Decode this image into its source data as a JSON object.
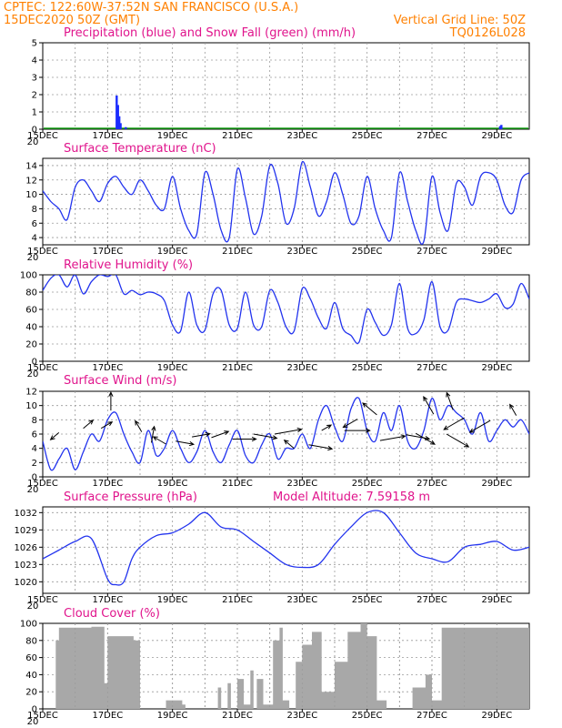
{
  "header": {
    "line1": "CPTEC:   122:60W-37:52N  SAN FRANCISCO (U.S.A.)",
    "line2": "15DEC2020  50Z (GMT)",
    "grid_note": "Vertical Grid Line: 50Z",
    "code": "TQ0126L028"
  },
  "colors": {
    "header": "#ff8000",
    "title": "#e0148c",
    "line": "#2233ee",
    "precip": "#1a2cff",
    "snow": "#16a016",
    "cloud": "#a8a8a8",
    "wind": "#000000"
  },
  "x_axis": {
    "date_labels": [
      "15DEC",
      "17DEC",
      "19DEC",
      "21DEC",
      "23DEC",
      "25DEC",
      "27DEC",
      "29DEC"
    ],
    "date_positions": [
      0,
      2,
      4,
      6,
      8,
      10,
      12,
      14
    ],
    "range": [
      0,
      15
    ],
    "stub": "20"
  },
  "chart_data": [
    {
      "type": "bar",
      "title": "Precipitation (blue) and Snow Fall (green) (mm/h)",
      "ylim": [
        0,
        5
      ],
      "yticks": [
        "0",
        "1",
        "2",
        "3",
        "4",
        "5"
      ],
      "series": [
        {
          "name": "Precipitation",
          "color": "#1a2cff",
          "points": [
            [
              2.28,
              1.95
            ],
            [
              2.32,
              1.4
            ],
            [
              2.36,
              0.75
            ],
            [
              2.4,
              0.35
            ],
            [
              2.56,
              0.12
            ],
            [
              14.1,
              0.18
            ],
            [
              14.14,
              0.25
            ]
          ]
        },
        {
          "name": "Snow Fall",
          "color": "#16a016",
          "values_all_zero": true
        }
      ]
    },
    {
      "type": "line",
      "title": "Surface Temperature (nC)",
      "ylim": [
        3,
        15
      ],
      "yticks": [
        "4",
        "6",
        "8",
        "10",
        "12",
        "14"
      ],
      "x": [
        0,
        0.25,
        0.5,
        0.75,
        1.0,
        1.25,
        1.5,
        1.75,
        2.0,
        2.25,
        2.5,
        2.75,
        3.0,
        3.25,
        3.5,
        3.75,
        4.0,
        4.25,
        4.5,
        4.75,
        5.0,
        5.25,
        5.5,
        5.75,
        6.0,
        6.25,
        6.5,
        6.75,
        7.0,
        7.25,
        7.5,
        7.75,
        8.0,
        8.25,
        8.5,
        8.75,
        9.0,
        9.25,
        9.5,
        9.75,
        10.0,
        10.25,
        10.5,
        10.75,
        11.0,
        11.25,
        11.5,
        11.75,
        12.0,
        12.25,
        12.5,
        12.75,
        13.0,
        13.25,
        13.5,
        13.75,
        14.0,
        14.25,
        14.5,
        14.75,
        15.0
      ],
      "y": [
        10.5,
        9,
        8,
        6.5,
        11,
        12,
        10.5,
        9,
        11.5,
        12.5,
        11,
        10,
        12,
        10.5,
        8.5,
        8,
        12.5,
        8,
        5,
        4.5,
        13,
        10,
        5,
        4,
        13.5,
        9.5,
        4.5,
        7,
        14,
        11.5,
        6,
        8,
        14.5,
        11,
        7,
        9,
        13,
        10,
        6,
        7,
        12.5,
        8,
        5,
        4,
        13,
        9,
        5,
        3.5,
        12.5,
        7.5,
        5,
        11.5,
        11,
        8.5,
        12.5,
        13,
        12,
        8.5,
        7.5,
        12,
        13
      ]
    },
    {
      "type": "line",
      "title": "Relative Humidity (%)",
      "ylim": [
        0,
        100
      ],
      "yticks": [
        "0",
        "20",
        "40",
        "60",
        "80",
        "100"
      ],
      "x": [
        0,
        0.25,
        0.5,
        0.75,
        1.0,
        1.25,
        1.5,
        1.75,
        2.0,
        2.25,
        2.5,
        2.75,
        3.0,
        3.25,
        3.5,
        3.75,
        4.0,
        4.25,
        4.5,
        4.75,
        5.0,
        5.25,
        5.5,
        5.75,
        6.0,
        6.25,
        6.5,
        6.75,
        7.0,
        7.25,
        7.5,
        7.75,
        8.0,
        8.25,
        8.5,
        8.75,
        9.0,
        9.25,
        9.5,
        9.75,
        10.0,
        10.25,
        10.5,
        10.75,
        11.0,
        11.25,
        11.5,
        11.75,
        12.0,
        12.25,
        12.5,
        12.75,
        13.0,
        13.25,
        13.5,
        13.75,
        14.0,
        14.25,
        14.5,
        14.75,
        15.0
      ],
      "y": [
        82,
        96,
        100,
        86,
        100,
        78,
        92,
        100,
        98,
        100,
        78,
        82,
        77,
        80,
        78,
        70,
        42,
        35,
        80,
        42,
        36,
        78,
        82,
        42,
        38,
        80,
        42,
        40,
        82,
        68,
        40,
        35,
        84,
        72,
        50,
        38,
        68,
        38,
        30,
        22,
        60,
        45,
        30,
        42,
        90,
        38,
        32,
        48,
        92,
        40,
        36,
        68,
        72,
        70,
        68,
        72,
        78,
        62,
        66,
        90,
        72
      ]
    },
    {
      "type": "line",
      "title": "Surface Wind (m/s)",
      "ylim": [
        0,
        12
      ],
      "yticks": [
        "0",
        "2",
        "4",
        "6",
        "8",
        "10",
        "12"
      ],
      "x": [
        0,
        0.25,
        0.5,
        0.75,
        1.0,
        1.25,
        1.5,
        1.75,
        2.0,
        2.25,
        2.5,
        2.75,
        3.0,
        3.25,
        3.5,
        3.75,
        4.0,
        4.25,
        4.5,
        4.75,
        5.0,
        5.25,
        5.5,
        5.75,
        6.0,
        6.25,
        6.5,
        6.75,
        7.0,
        7.25,
        7.5,
        7.75,
        8.0,
        8.25,
        8.5,
        8.75,
        9.0,
        9.25,
        9.5,
        9.75,
        10.0,
        10.25,
        10.5,
        10.75,
        11.0,
        11.25,
        11.5,
        11.75,
        12.0,
        12.25,
        12.5,
        12.75,
        13.0,
        13.25,
        13.5,
        13.75,
        14.0,
        14.25,
        14.5,
        14.75,
        15.0
      ],
      "y": [
        5,
        1,
        2.5,
        4,
        1,
        3.5,
        6,
        5,
        8,
        9,
        6,
        3.5,
        2,
        6.5,
        3,
        4,
        6.5,
        4,
        2,
        3.5,
        6.5,
        3.5,
        2,
        4.5,
        6.5,
        3,
        2,
        4.5,
        6,
        2.5,
        4,
        4,
        6,
        4,
        8,
        10,
        7,
        5,
        9.5,
        11,
        6.5,
        5,
        9,
        6.5,
        10,
        5,
        4,
        6.5,
        11,
        8,
        10,
        9,
        8,
        6,
        9,
        5,
        6.5,
        8,
        7,
        8,
        6
      ],
      "arrows": [
        [
          0.5,
          6.2,
          12,
          220
        ],
        [
          1.25,
          6.8,
          14,
          40
        ],
        [
          1.8,
          6.8,
          14,
          30
        ],
        [
          2.1,
          9.3,
          20,
          90
        ],
        [
          3.05,
          6.3,
          14,
          120
        ],
        [
          3.35,
          4.8,
          18,
          80
        ],
        [
          3.8,
          4.6,
          16,
          150
        ],
        [
          4.1,
          5.0,
          20,
          350
        ],
        [
          4.6,
          5.6,
          20,
          10
        ],
        [
          5.2,
          5.5,
          20,
          20
        ],
        [
          5.85,
          5.3,
          26,
          0
        ],
        [
          6.5,
          6.0,
          26,
          350
        ],
        [
          7.15,
          6.0,
          30,
          10
        ],
        [
          7.75,
          4.0,
          14,
          140
        ],
        [
          8.2,
          4.5,
          26,
          350
        ],
        [
          8.6,
          6.5,
          12,
          30
        ],
        [
          9.3,
          6.5,
          28,
          0
        ],
        [
          9.7,
          8.1,
          18,
          210
        ],
        [
          10.3,
          8.7,
          20,
          140
        ],
        [
          10.4,
          5.1,
          28,
          10
        ],
        [
          11.2,
          5.9,
          26,
          350
        ],
        [
          11.5,
          6.1,
          24,
          330
        ],
        [
          12.05,
          8.8,
          22,
          120
        ],
        [
          12.45,
          6.0,
          28,
          330
        ],
        [
          12.65,
          9.4,
          20,
          110
        ],
        [
          13.0,
          8.3,
          26,
          210
        ],
        [
          13.8,
          7.9,
          26,
          210
        ],
        [
          14.6,
          8.6,
          14,
          120
        ]
      ]
    },
    {
      "type": "line",
      "title": "Surface Pressure (hPa)",
      "annotation": "Model Altitude: 7.59158 m",
      "ylim": [
        1018,
        1033
      ],
      "yticks": [
        "1020",
        "1023",
        "1026",
        "1029",
        "1032"
      ],
      "x": [
        0,
        0.5,
        1.0,
        1.5,
        2.0,
        2.25,
        2.5,
        2.75,
        3.0,
        3.5,
        4.0,
        4.5,
        5.0,
        5.5,
        6.0,
        6.5,
        7.0,
        7.5,
        8.0,
        8.5,
        9.0,
        9.5,
        10.0,
        10.5,
        11.0,
        11.5,
        12.0,
        12.5,
        13.0,
        13.5,
        14.0,
        14.5,
        15.0
      ],
      "y": [
        1024,
        1025.5,
        1027,
        1027.5,
        1020.5,
        1019.5,
        1020,
        1024,
        1026,
        1028,
        1028.5,
        1030,
        1032,
        1029.5,
        1029,
        1027,
        1025,
        1023,
        1022.5,
        1023,
        1026.5,
        1029.5,
        1032,
        1032,
        1028.5,
        1025,
        1024,
        1023.5,
        1026,
        1026.5,
        1027,
        1025.5,
        1026
      ]
    },
    {
      "type": "area",
      "title": "Cloud Cover (%)",
      "ylim": [
        0,
        100
      ],
      "yticks": [
        "0",
        "20",
        "40",
        "60",
        "80",
        "100"
      ],
      "x": [
        0,
        0.4,
        0.5,
        1.5,
        1.9,
        2.0,
        2.8,
        3.0,
        3.7,
        3.8,
        4.3,
        4.4,
        5.3,
        5.4,
        5.5,
        5.7,
        5.8,
        6.0,
        6.2,
        6.4,
        6.5,
        6.6,
        6.8,
        7.1,
        7.3,
        7.4,
        7.6,
        7.8,
        8.0,
        8.3,
        8.6,
        9.0,
        9.4,
        9.8,
        10.0,
        10.3,
        10.6,
        11.0,
        11.4,
        11.8,
        12.0,
        12.3,
        15.0
      ],
      "y": [
        0,
        80,
        95,
        96,
        30,
        85,
        80,
        0,
        0,
        10,
        5,
        0,
        0,
        25,
        0,
        30,
        0,
        35,
        5,
        45,
        0,
        35,
        5,
        80,
        95,
        10,
        0,
        55,
        75,
        90,
        20,
        55,
        90,
        100,
        85,
        10,
        0,
        0,
        25,
        40,
        10,
        95,
        97
      ]
    }
  ]
}
